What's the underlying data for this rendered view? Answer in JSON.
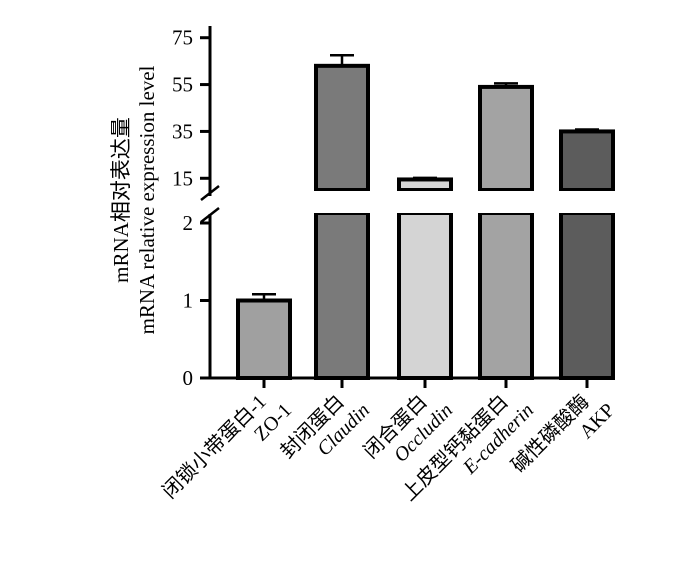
{
  "chart_data": {
    "type": "bar",
    "ylabel_lines": [
      "mRNA相对表达量",
      "mRNA relative expression level"
    ],
    "categories": [
      {
        "cn": "闭锁小带蛋白-1",
        "en": "ZO-1",
        "italic": false
      },
      {
        "cn": "封闭蛋白",
        "en": "Claudin",
        "italic": true
      },
      {
        "cn": "闭合蛋白",
        "en": "Occludin",
        "italic": true
      },
      {
        "cn": "上皮型钙黏蛋白",
        "en": "E-cadherin",
        "italic": true
      },
      {
        "cn": "碱性磷酸酶",
        "en": "AKP",
        "italic": false
      }
    ],
    "values": [
      1.0,
      63.0,
      14.5,
      54.0,
      35.0
    ],
    "errors": [
      0.08,
      4.5,
      0.7,
      1.5,
      0.8
    ],
    "colors": [
      "#a0a0a0",
      "#7a7a7a",
      "#d4d4d4",
      "#a3a3a3",
      "#5c5c5c"
    ],
    "axis_break": true,
    "lower_segment": {
      "range": [
        0,
        2
      ],
      "ticks": [
        "0",
        "1",
        "2"
      ]
    },
    "upper_segment": {
      "range": [
        10,
        80
      ],
      "ticks": [
        "15",
        "35",
        "55",
        "75"
      ]
    }
  }
}
